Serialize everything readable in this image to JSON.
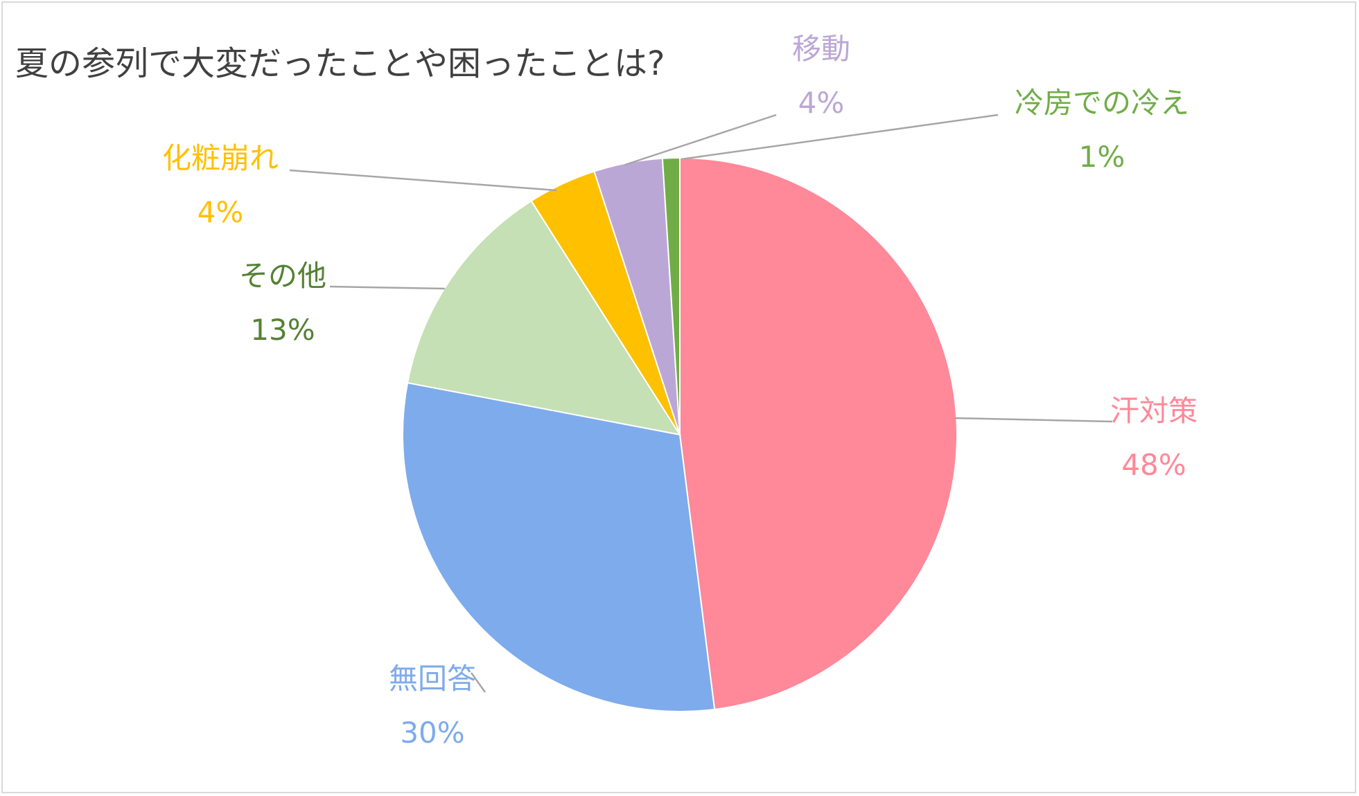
{
  "chart_data": {
    "type": "pie",
    "title": "夏の参列で大変だったことや困ったことは?",
    "start_angle_deg": 0,
    "direction": "clockwise",
    "slices": [
      {
        "label": "汗対策",
        "value": 48,
        "pct_label": "48%",
        "color": "#FF8899",
        "label_color": "#FF8899"
      },
      {
        "label": "無回答",
        "value": 30,
        "pct_label": "30%",
        "color": "#7EABEC",
        "label_color": "#7EABEC"
      },
      {
        "label": "その他",
        "value": 13,
        "pct_label": "13%",
        "color": "#C5E0B4",
        "label_color": "#548235"
      },
      {
        "label": "化粧崩れ",
        "value": 4,
        "pct_label": "4%",
        "color": "#FFC000",
        "label_color": "#FFC000"
      },
      {
        "label": "移動",
        "value": 4,
        "pct_label": "4%",
        "color": "#BBA7D6",
        "label_color": "#BBA7D6"
      },
      {
        "label": "冷房での冷え",
        "value": 1,
        "pct_label": "1%",
        "color": "#70AD47",
        "label_color": "#70AD47"
      }
    ],
    "leader_line_color": "#A6A6A6"
  }
}
